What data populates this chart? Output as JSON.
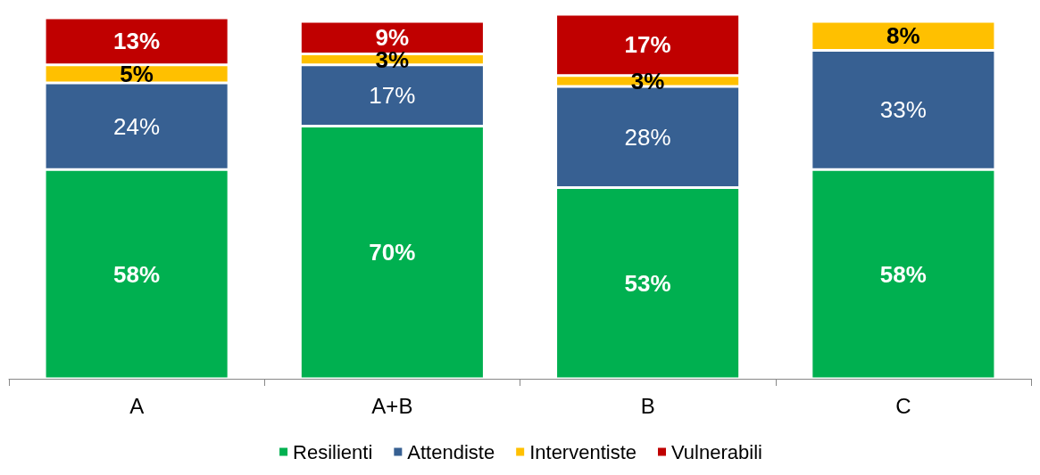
{
  "chart_data": {
    "type": "bar",
    "stacked": true,
    "categories": [
      "A",
      "A+B",
      "B",
      "C"
    ],
    "series": [
      {
        "name": "Resilienti",
        "color": "#00b050",
        "values": [
          58,
          70,
          53,
          58
        ],
        "value_labels": [
          "58%",
          "70%",
          "53%",
          "58%"
        ]
      },
      {
        "name": "Attendiste",
        "color": "#376092",
        "values": [
          24,
          17,
          28,
          33
        ],
        "value_labels": [
          "24%",
          "17%",
          "28%",
          "33%"
        ]
      },
      {
        "name": "Interventiste",
        "color": "#ffc000",
        "values": [
          5,
          3,
          3,
          8
        ],
        "value_labels": [
          "5%",
          "3%",
          "3%",
          "8%"
        ]
      },
      {
        "name": "Vulnerabili",
        "color": "#c00000",
        "values": [
          13,
          9,
          17,
          null
        ],
        "value_labels": [
          "13%",
          "9%",
          "17%",
          null
        ]
      }
    ],
    "legend": "bottom"
  }
}
